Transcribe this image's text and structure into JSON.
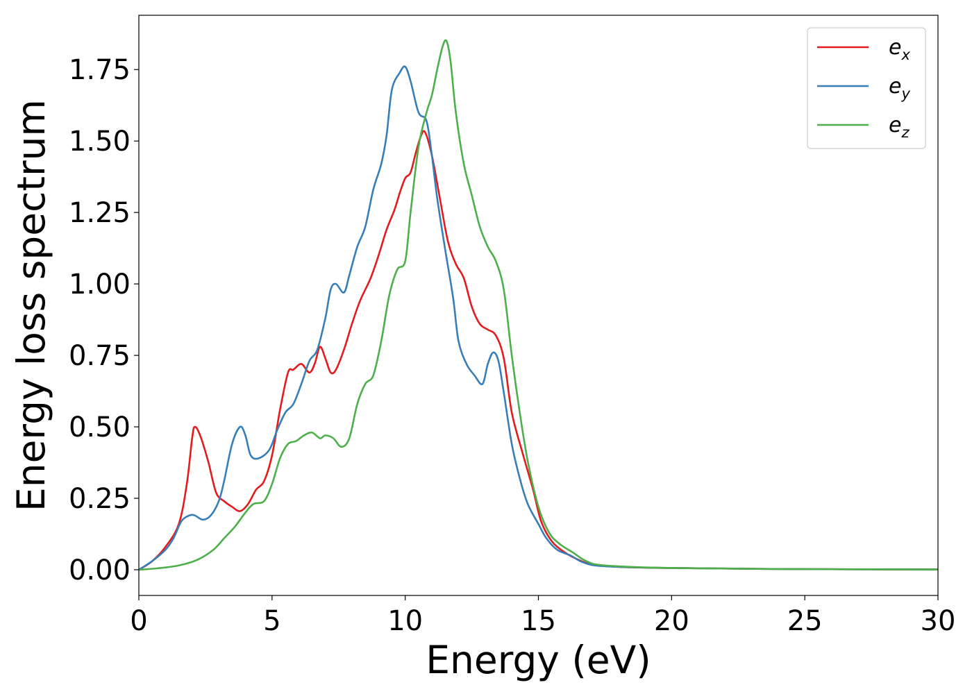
{
  "chart_data": {
    "type": "line",
    "title": "",
    "xlabel": "Energy (eV)",
    "ylabel": "Energy loss spectrum",
    "xlim": [
      0,
      30
    ],
    "ylim": [
      -0.09,
      1.94
    ],
    "xticks": [
      0,
      5,
      10,
      15,
      20,
      25,
      30
    ],
    "xtick_labels": [
      "0",
      "5",
      "10",
      "15",
      "20",
      "25",
      "30"
    ],
    "yticks": [
      0.0,
      0.25,
      0.5,
      0.75,
      1.0,
      1.25,
      1.5,
      1.75
    ],
    "ytick_labels": [
      "0.00",
      "0.25",
      "0.50",
      "0.75",
      "1.00",
      "1.25",
      "1.50",
      "1.75"
    ],
    "grid": false,
    "legend_position": "top-right",
    "series": [
      {
        "name": "e_x",
        "legend_base": "e",
        "legend_sub": "x",
        "color": "#e41a1c",
        "points": [
          [
            0,
            0.0
          ],
          [
            0.5,
            0.03
          ],
          [
            1.0,
            0.08
          ],
          [
            1.5,
            0.16
          ],
          [
            1.8,
            0.3
          ],
          [
            2.0,
            0.46
          ],
          [
            2.1,
            0.5
          ],
          [
            2.3,
            0.47
          ],
          [
            2.6,
            0.38
          ],
          [
            2.9,
            0.27
          ],
          [
            3.2,
            0.24
          ],
          [
            3.5,
            0.22
          ],
          [
            3.8,
            0.205
          ],
          [
            4.1,
            0.23
          ],
          [
            4.4,
            0.28
          ],
          [
            4.7,
            0.31
          ],
          [
            5.0,
            0.4
          ],
          [
            5.3,
            0.56
          ],
          [
            5.6,
            0.69
          ],
          [
            5.8,
            0.7
          ],
          [
            6.1,
            0.72
          ],
          [
            6.4,
            0.69
          ],
          [
            6.6,
            0.72
          ],
          [
            6.8,
            0.78
          ],
          [
            7.0,
            0.74
          ],
          [
            7.2,
            0.69
          ],
          [
            7.4,
            0.7
          ],
          [
            7.7,
            0.77
          ],
          [
            8.0,
            0.86
          ],
          [
            8.3,
            0.94
          ],
          [
            8.7,
            1.02
          ],
          [
            9.0,
            1.1
          ],
          [
            9.3,
            1.19
          ],
          [
            9.6,
            1.26
          ],
          [
            9.8,
            1.32
          ],
          [
            10.0,
            1.37
          ],
          [
            10.2,
            1.39
          ],
          [
            10.4,
            1.46
          ],
          [
            10.6,
            1.52
          ],
          [
            10.75,
            1.53
          ],
          [
            11.0,
            1.45
          ],
          [
            11.3,
            1.3
          ],
          [
            11.6,
            1.15
          ],
          [
            11.9,
            1.07
          ],
          [
            12.2,
            1.02
          ],
          [
            12.5,
            0.92
          ],
          [
            12.8,
            0.86
          ],
          [
            13.1,
            0.84
          ],
          [
            13.4,
            0.82
          ],
          [
            13.7,
            0.74
          ],
          [
            14.0,
            0.55
          ],
          [
            14.4,
            0.41
          ],
          [
            14.8,
            0.28
          ],
          [
            15.1,
            0.17
          ],
          [
            15.5,
            0.1
          ],
          [
            16.0,
            0.06
          ],
          [
            16.5,
            0.035
          ],
          [
            17.0,
            0.02
          ],
          [
            18.0,
            0.01
          ],
          [
            20.0,
            0.006
          ],
          [
            25.0,
            0.002
          ],
          [
            30.0,
            0.001
          ]
        ]
      },
      {
        "name": "e_y",
        "legend_base": "e",
        "legend_sub": "y",
        "color": "#377eb8",
        "points": [
          [
            0,
            0.0
          ],
          [
            0.5,
            0.03
          ],
          [
            1.0,
            0.07
          ],
          [
            1.3,
            0.11
          ],
          [
            1.6,
            0.17
          ],
          [
            1.9,
            0.19
          ],
          [
            2.1,
            0.19
          ],
          [
            2.4,
            0.175
          ],
          [
            2.7,
            0.19
          ],
          [
            3.0,
            0.24
          ],
          [
            3.2,
            0.31
          ],
          [
            3.5,
            0.44
          ],
          [
            3.8,
            0.5
          ],
          [
            4.0,
            0.47
          ],
          [
            4.2,
            0.4
          ],
          [
            4.5,
            0.39
          ],
          [
            4.9,
            0.42
          ],
          [
            5.2,
            0.49
          ],
          [
            5.5,
            0.55
          ],
          [
            5.8,
            0.58
          ],
          [
            6.1,
            0.65
          ],
          [
            6.4,
            0.73
          ],
          [
            6.7,
            0.77
          ],
          [
            7.0,
            0.88
          ],
          [
            7.2,
            0.98
          ],
          [
            7.4,
            1.0
          ],
          [
            7.7,
            0.97
          ],
          [
            7.9,
            1.03
          ],
          [
            8.2,
            1.13
          ],
          [
            8.5,
            1.2
          ],
          [
            8.8,
            1.33
          ],
          [
            9.1,
            1.42
          ],
          [
            9.3,
            1.52
          ],
          [
            9.5,
            1.68
          ],
          [
            9.8,
            1.74
          ],
          [
            10.0,
            1.76
          ],
          [
            10.2,
            1.71
          ],
          [
            10.5,
            1.6
          ],
          [
            10.8,
            1.57
          ],
          [
            11.0,
            1.45
          ],
          [
            11.2,
            1.3
          ],
          [
            11.5,
            1.12
          ],
          [
            11.8,
            0.95
          ],
          [
            12.0,
            0.8
          ],
          [
            12.3,
            0.72
          ],
          [
            12.6,
            0.68
          ],
          [
            12.9,
            0.65
          ],
          [
            13.1,
            0.72
          ],
          [
            13.3,
            0.76
          ],
          [
            13.5,
            0.73
          ],
          [
            13.7,
            0.62
          ],
          [
            14.0,
            0.44
          ],
          [
            14.3,
            0.32
          ],
          [
            14.6,
            0.23
          ],
          [
            15.0,
            0.16
          ],
          [
            15.3,
            0.11
          ],
          [
            15.7,
            0.07
          ],
          [
            16.2,
            0.05
          ],
          [
            16.7,
            0.025
          ],
          [
            17.5,
            0.012
          ],
          [
            20.0,
            0.006
          ],
          [
            25.0,
            0.002
          ],
          [
            30.0,
            0.001
          ]
        ]
      },
      {
        "name": "e_z",
        "legend_base": "e",
        "legend_sub": "z",
        "color": "#4daf4a",
        "points": [
          [
            0,
            0.0
          ],
          [
            0.7,
            0.005
          ],
          [
            1.5,
            0.015
          ],
          [
            2.2,
            0.035
          ],
          [
            2.8,
            0.07
          ],
          [
            3.2,
            0.11
          ],
          [
            3.6,
            0.15
          ],
          [
            4.0,
            0.2
          ],
          [
            4.3,
            0.23
          ],
          [
            4.7,
            0.24
          ],
          [
            5.0,
            0.3
          ],
          [
            5.3,
            0.39
          ],
          [
            5.6,
            0.44
          ],
          [
            5.9,
            0.45
          ],
          [
            6.2,
            0.47
          ],
          [
            6.5,
            0.48
          ],
          [
            6.8,
            0.46
          ],
          [
            7.0,
            0.47
          ],
          [
            7.3,
            0.46
          ],
          [
            7.6,
            0.43
          ],
          [
            7.9,
            0.46
          ],
          [
            8.2,
            0.58
          ],
          [
            8.5,
            0.65
          ],
          [
            8.8,
            0.68
          ],
          [
            9.1,
            0.8
          ],
          [
            9.4,
            0.96
          ],
          [
            9.7,
            1.05
          ],
          [
            10.0,
            1.08
          ],
          [
            10.2,
            1.25
          ],
          [
            10.5,
            1.48
          ],
          [
            10.8,
            1.6
          ],
          [
            11.0,
            1.66
          ],
          [
            11.2,
            1.75
          ],
          [
            11.4,
            1.83
          ],
          [
            11.55,
            1.85
          ],
          [
            11.7,
            1.78
          ],
          [
            11.9,
            1.6
          ],
          [
            12.2,
            1.42
          ],
          [
            12.5,
            1.31
          ],
          [
            12.8,
            1.2
          ],
          [
            13.1,
            1.13
          ],
          [
            13.4,
            1.08
          ],
          [
            13.7,
            0.98
          ],
          [
            14.0,
            0.75
          ],
          [
            14.3,
            0.55
          ],
          [
            14.6,
            0.38
          ],
          [
            15.0,
            0.22
          ],
          [
            15.4,
            0.13
          ],
          [
            15.8,
            0.09
          ],
          [
            16.3,
            0.06
          ],
          [
            16.8,
            0.03
          ],
          [
            17.5,
            0.015
          ],
          [
            20.0,
            0.006
          ],
          [
            25.0,
            0.002
          ],
          [
            30.0,
            0.001
          ]
        ]
      }
    ]
  }
}
